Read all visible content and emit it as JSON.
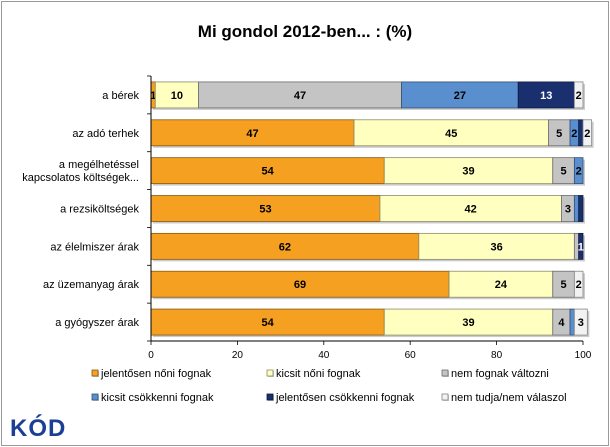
{
  "chart_data": {
    "type": "bar",
    "orientation": "horizontal",
    "stacked": true,
    "title": "Mi gondol 2012-ben... : (%)",
    "categories": [
      "a bérek",
      "az adó terhek",
      "a megélhetéssel kapcsolatos költségek...",
      "a rezsiköltségek",
      "az élelmiszer árak",
      "az üzemanyag árak",
      "a gyógyszer árak"
    ],
    "series": [
      {
        "name": "jelentősen nőni fognak",
        "color": "#f5a020",
        "values": [
          1,
          47,
          54,
          53,
          62,
          69,
          54
        ]
      },
      {
        "name": "kicsit nőni fognak",
        "color": "#ffffc0",
        "values": [
          10,
          45,
          39,
          42,
          36,
          24,
          39
        ]
      },
      {
        "name": "nem fognak változni",
        "color": "#c4c4c4",
        "values": [
          47,
          5,
          5,
          3,
          1,
          5,
          4
        ]
      },
      {
        "name": "kicsit csökkenni fognak",
        "color": "#5a8fcf",
        "values": [
          27,
          2,
          2,
          1,
          0,
          0,
          1
        ]
      },
      {
        "name": "jelentősen csökkenni fognak",
        "color": "#1a2f6e",
        "values": [
          13,
          1,
          0,
          1,
          1,
          0,
          0
        ]
      },
      {
        "name": "nem tudja/nem válaszol",
        "color": "#f2f2f2",
        "values": [
          2,
          2,
          0,
          0,
          0,
          2,
          3
        ]
      }
    ],
    "data_labels": [
      [
        "1",
        "10",
        "47",
        "27",
        "13",
        "2"
      ],
      [
        "47",
        "45",
        "5",
        "2",
        "",
        "2"
      ],
      [
        "54",
        "39",
        "5",
        "2",
        "",
        ""
      ],
      [
        "53",
        "42",
        "3",
        "",
        "",
        ""
      ],
      [
        "62",
        "36",
        "",
        "",
        "1",
        ""
      ],
      [
        "69",
        "24",
        "5",
        "",
        "",
        "2"
      ],
      [
        "54",
        "39",
        "4",
        "",
        "",
        "3"
      ]
    ],
    "x_ticks": [
      "0",
      "20",
      "40",
      "60",
      "80",
      "100"
    ],
    "xlim": [
      0,
      100
    ],
    "grid": false,
    "legend": "bottom"
  },
  "logo": {
    "text": "KÓD",
    "color": "#1b3f94"
  }
}
